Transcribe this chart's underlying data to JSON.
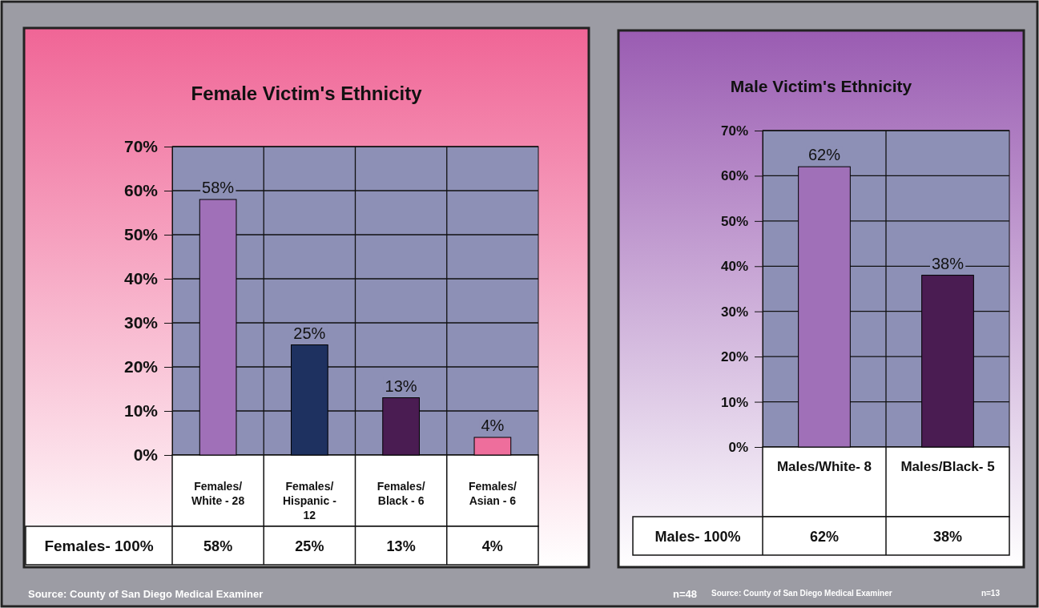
{
  "chart_data": [
    {
      "type": "bar",
      "title": "Female Victim's Ethnicity",
      "categories": [
        "Females/ White - 28",
        "Females/ Hispanic - 12",
        "Females/ Black - 6",
        "Females/ Asian - 6"
      ],
      "values": [
        58,
        25,
        13,
        4
      ],
      "colors": [
        "#a070b8",
        "#1e3160",
        "#4a1c52",
        "#ee6e9c"
      ],
      "value_labels": [
        "58%",
        "25%",
        "13%",
        "4%"
      ],
      "ylim": [
        0,
        70
      ],
      "yticks": [
        {
          "value": 0,
          "label": "0%"
        },
        {
          "value": 10,
          "label": "10%"
        },
        {
          "value": 20,
          "label": "20%"
        },
        {
          "value": 30,
          "label": "30%"
        },
        {
          "value": 40,
          "label": "40%"
        },
        {
          "value": 50,
          "label": "50%"
        },
        {
          "value": 60,
          "label": "60%"
        },
        {
          "value": 70,
          "label": "70%"
        }
      ],
      "grid": true,
      "annotations": [
        "Females- 100%",
        "Source: County of San Diego Medical Examiner",
        "n=48"
      ]
    },
    {
      "type": "bar",
      "title": "Male Victim's Ethnicity",
      "categories": [
        "Males/White- 8",
        "Males/Black- 5"
      ],
      "values": [
        62,
        38
      ],
      "colors": [
        "#a070b8",
        "#4a1c52"
      ],
      "value_labels": [
        "62%",
        "38%"
      ],
      "ylim": [
        0,
        70
      ],
      "yticks": [
        {
          "value": 0,
          "label": "0%"
        },
        {
          "value": 10,
          "label": "10%"
        },
        {
          "value": 20,
          "label": "20%"
        },
        {
          "value": 30,
          "label": "30%"
        },
        {
          "value": 40,
          "label": "40%"
        },
        {
          "value": 50,
          "label": "50%"
        },
        {
          "value": 60,
          "label": "60%"
        },
        {
          "value": 70,
          "label": "70%"
        }
      ],
      "grid": true,
      "annotations": [
        "Males- 100%",
        "Source: County of San Diego Medical Examiner",
        "n=13"
      ]
    }
  ]
}
